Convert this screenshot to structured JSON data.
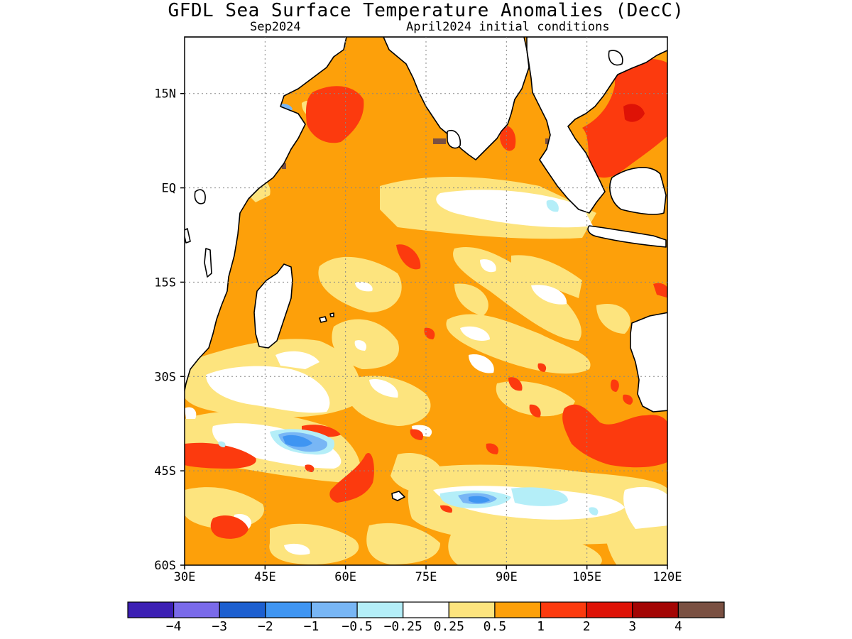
{
  "title": "GFDL Sea Surface Temperature Anomalies (DecC)",
  "subtitle_left": "Sep2024",
  "subtitle_right": "April2024 initial conditions",
  "axes": {
    "lon_range": [
      30,
      120
    ],
    "lat_range": [
      -60,
      24
    ],
    "x_ticks": [
      "30E",
      "45E",
      "60E",
      "75E",
      "90E",
      "105E",
      "120E"
    ],
    "y_ticks": [
      "15N",
      "EQ",
      "15S",
      "30S",
      "45S",
      "60S"
    ],
    "grid": "dotted"
  },
  "colorbar": {
    "colors": [
      "#3c1fb4",
      "#7a6aea",
      "#1c5fd0",
      "#3f95f2",
      "#78b6f5",
      "#b4eef8",
      "#ffffff",
      "#fde47e",
      "#fda00a",
      "#fc3a0e",
      "#de1206",
      "#a30504",
      "#7a5042"
    ],
    "labels": [
      "-4",
      "-3",
      "-2",
      "-1",
      "-0.5",
      "-0.25",
      "0.25",
      "0.5",
      "1",
      "2",
      "3",
      "4"
    ]
  }
}
